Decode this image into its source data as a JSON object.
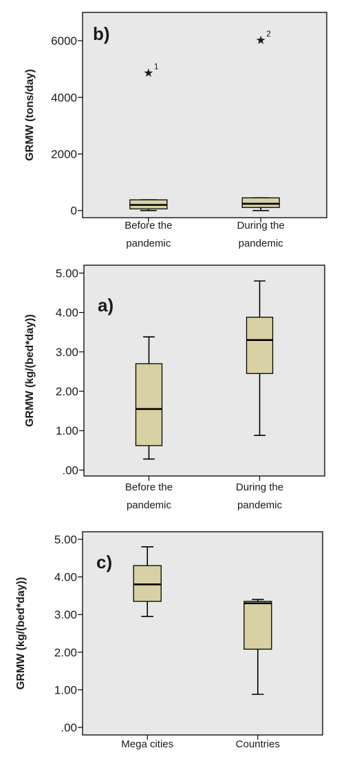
{
  "chart_data": [
    {
      "panel": "b)",
      "type": "box",
      "ylabel": "GRMW (tons/day)",
      "ylim": [
        -250,
        7000
      ],
      "yticks": [
        0,
        2000,
        4000,
        6000
      ],
      "ytick_labels": [
        "0",
        "2000",
        "4000",
        "6000"
      ],
      "categories": [
        [
          "Before the",
          "pandemic"
        ],
        [
          "During the",
          "pandemic"
        ]
      ],
      "boxes": [
        {
          "min": 0,
          "q1": 60,
          "median": 200,
          "q3": 380,
          "max": 380,
          "outliers": [
            {
              "value": 4900,
              "id": "1"
            }
          ]
        },
        {
          "min": 0,
          "q1": 110,
          "median": 240,
          "q3": 450,
          "max": 450,
          "outliers": [
            {
              "value": 6050,
              "id": "2"
            }
          ]
        }
      ],
      "box_color": "#d8d1a4",
      "background": "#e8e8e8"
    },
    {
      "panel": "a)",
      "type": "box",
      "ylabel": "GRMW (kg/(bed*day))",
      "ylim": [
        -0.15,
        5.2
      ],
      "yticks": [
        0,
        1,
        2,
        3,
        4,
        5
      ],
      "ytick_labels": [
        ".00",
        "1.00",
        "2.00",
        "3.00",
        "4.00",
        "5.00"
      ],
      "categories": [
        [
          "Before the",
          "pandemic"
        ],
        [
          "During the",
          "pandemic"
        ]
      ],
      "boxes": [
        {
          "min": 0.28,
          "q1": 0.62,
          "median": 1.55,
          "q3": 2.7,
          "max": 3.38,
          "outliers": []
        },
        {
          "min": 0.88,
          "q1": 2.45,
          "median": 3.3,
          "q3": 3.88,
          "max": 4.8,
          "outliers": []
        }
      ],
      "box_color": "#d8d1a4",
      "background": "#e8e8e8"
    },
    {
      "panel": "c)",
      "type": "box",
      "ylabel": "GRMW (kg/(bed*day))",
      "ylim": [
        -0.2,
        5.2
      ],
      "yticks": [
        0,
        1,
        2,
        3,
        4,
        5
      ],
      "ytick_labels": [
        ".00",
        "1.00",
        "2.00",
        "3.00",
        "4.00",
        "5.00"
      ],
      "categories": [
        [
          "Mega cities"
        ],
        [
          "Countries"
        ]
      ],
      "boxes": [
        {
          "min": 2.95,
          "q1": 3.35,
          "median": 3.8,
          "q3": 4.3,
          "max": 4.8,
          "outliers": []
        },
        {
          "min": 0.88,
          "q1": 2.08,
          "median": 3.3,
          "q3": 3.35,
          "max": 3.4,
          "outliers": []
        }
      ],
      "box_color": "#d8d1a4",
      "background": "#e8e8e8"
    }
  ]
}
